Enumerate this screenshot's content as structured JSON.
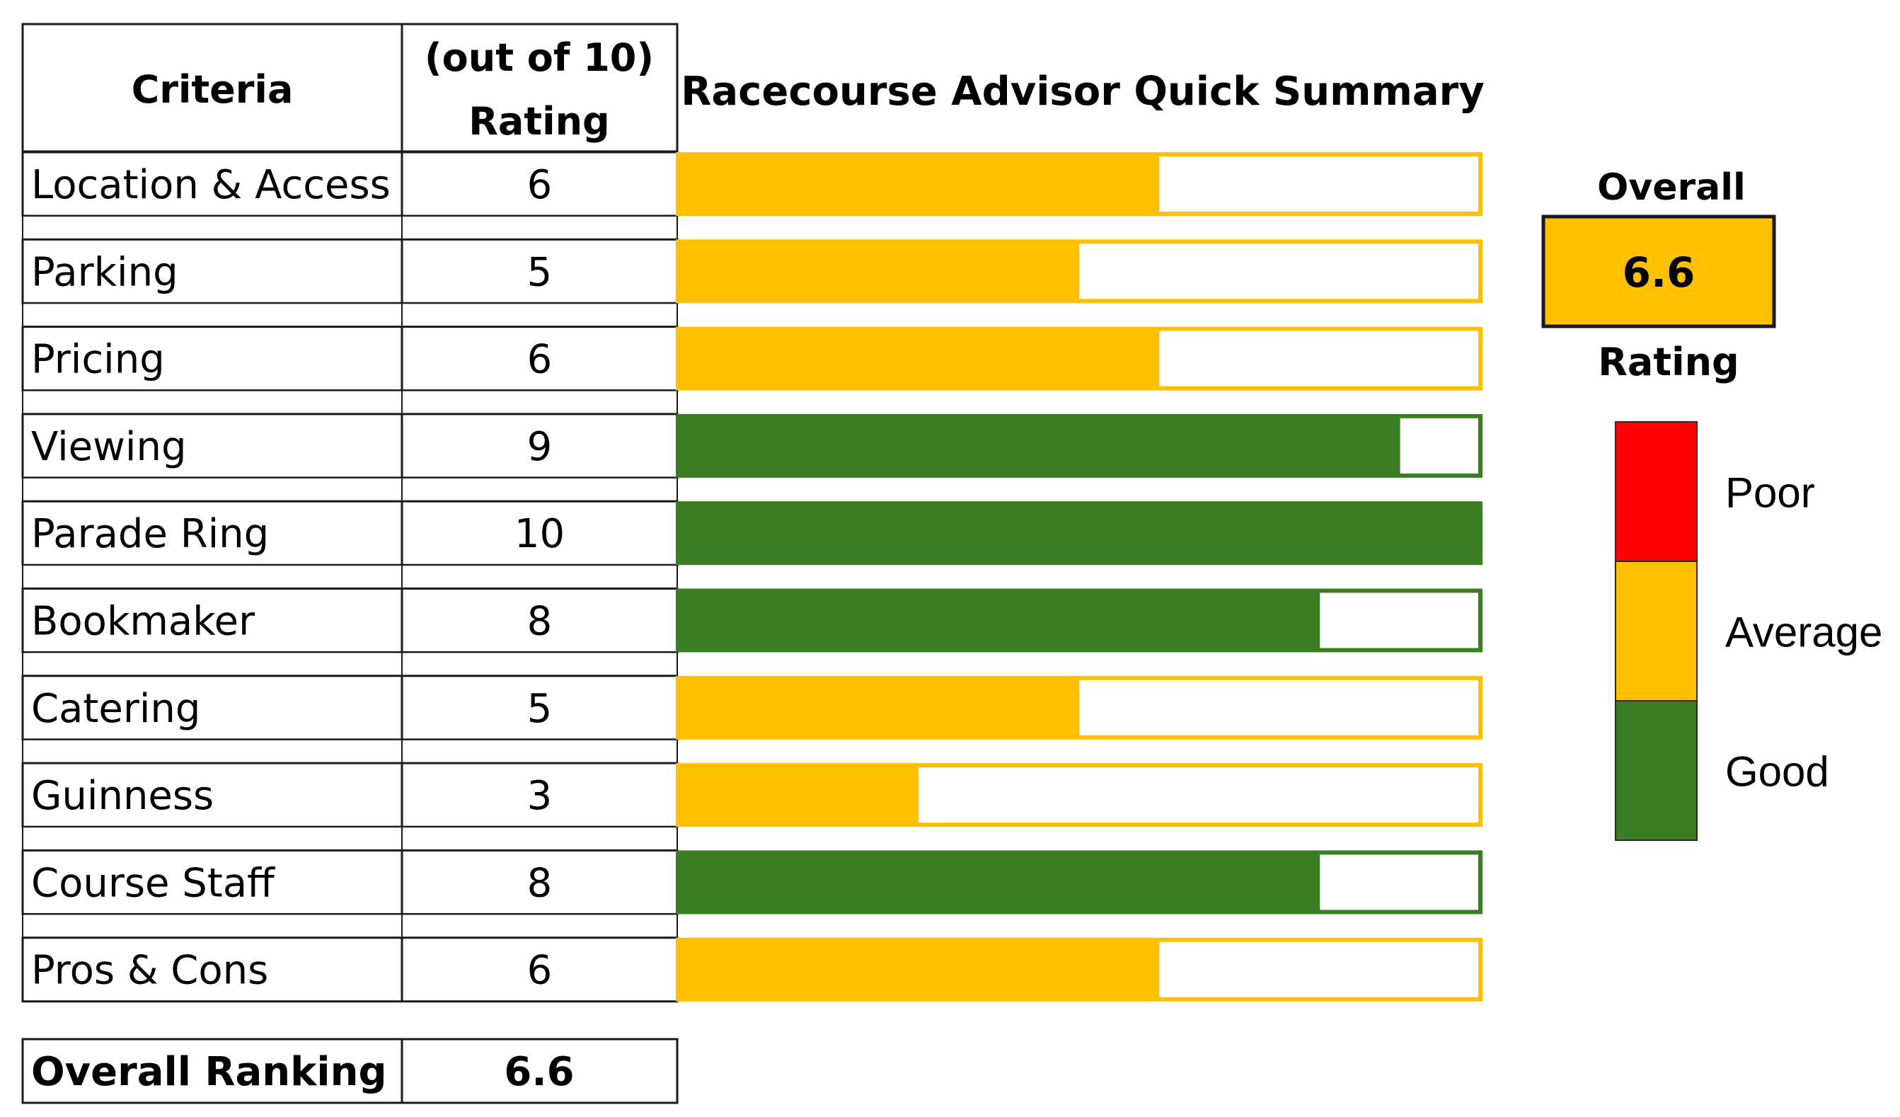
{
  "chart_data": {
    "type": "bar",
    "title": "Racecourse Advisor Quick Summary",
    "headers": {
      "criteria": "Criteria",
      "rating_line1": "(out of 10)",
      "rating_line2": "Rating"
    },
    "categories": [
      "Location & Access",
      "Parking",
      "Pricing",
      "Viewing",
      "Parade Ring",
      "Bookmaker",
      "Catering",
      "Guinness",
      "Course Staff",
      "Pros & Cons"
    ],
    "values": [
      6,
      5,
      6,
      9,
      10,
      8,
      5,
      3,
      8,
      6
    ],
    "value_labels": [
      "6",
      "5",
      "6",
      "9",
      "10",
      "8",
      "5",
      "3",
      "8",
      "6"
    ],
    "bands": [
      "Average",
      "Average",
      "Average",
      "Good",
      "Good",
      "Good",
      "Average",
      "Average",
      "Good",
      "Average"
    ],
    "xlim": [
      0,
      10
    ],
    "overall_row": {
      "label": "Overall Ranking",
      "value": "6.6"
    },
    "overall_box": {
      "title": "Overall",
      "value": "6.6",
      "band": "Average"
    },
    "legend": {
      "title": "Rating",
      "items": [
        {
          "label": "Poor",
          "color": "#ff0000"
        },
        {
          "label": "Average",
          "color": "#ffc000"
        },
        {
          "label": "Good",
          "color": "#3a7d22"
        }
      ]
    },
    "colors": {
      "Poor": "#ff0000",
      "Average": "#ffc000",
      "Good": "#3a7d22"
    }
  }
}
